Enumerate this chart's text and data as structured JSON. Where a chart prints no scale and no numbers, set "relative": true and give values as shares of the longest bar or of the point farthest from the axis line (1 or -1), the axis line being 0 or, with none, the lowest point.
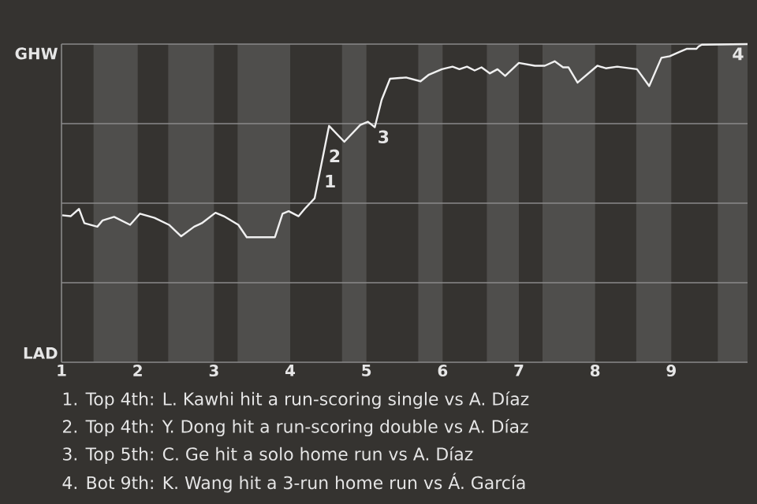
{
  "chart_data": {
    "type": "line",
    "relative": true,
    "x": [
      1.01,
      1.12,
      1.23,
      1.3,
      1.47,
      1.54,
      1.69,
      1.9,
      2.03,
      2.22,
      2.41,
      2.57,
      2.74,
      2.84,
      3.02,
      3.13,
      3.32,
      3.43,
      3.8,
      3.9,
      3.98,
      4.11,
      4.19,
      4.32,
      4.51,
      4.71,
      4.92,
      5.02,
      5.11,
      5.2,
      5.31,
      5.52,
      5.71,
      5.82,
      5.99,
      6.13,
      6.22,
      6.32,
      6.42,
      6.51,
      6.62,
      6.72,
      6.82,
      7.0,
      7.21,
      7.34,
      7.47,
      7.58,
      7.65,
      7.77,
      8.03,
      8.14,
      8.29,
      8.55,
      8.71,
      8.87,
      8.98,
      9.12,
      9.2,
      9.33,
      9.36,
      9.4,
      10
    ],
    "series": [
      {
        "color": "#f0f0f0",
        "values": [
          0.462,
          0.459,
          0.482,
          0.437,
          0.426,
          0.446,
          0.457,
          0.432,
          0.467,
          0.454,
          0.432,
          0.396,
          0.426,
          0.437,
          0.47,
          0.459,
          0.432,
          0.393,
          0.393,
          0.467,
          0.475,
          0.459,
          0.482,
          0.515,
          0.743,
          0.693,
          0.746,
          0.756,
          0.739,
          0.825,
          0.891,
          0.895,
          0.883,
          0.904,
          0.921,
          0.929,
          0.921,
          0.929,
          0.917,
          0.927,
          0.908,
          0.921,
          0.9,
          0.941,
          0.932,
          0.932,
          0.946,
          0.927,
          0.927,
          0.879,
          0.932,
          0.924,
          0.929,
          0.921,
          0.868,
          0.957,
          0.962,
          0.977,
          0.985,
          0.985,
          0.993,
          0.998,
          1
        ]
      }
    ],
    "xlim": [
      1,
      10
    ],
    "xticks": [
      1,
      2,
      3,
      4,
      5,
      6,
      7,
      8,
      9
    ],
    "ref_lines": [
      {
        "axis": "y",
        "value": 0.25,
        "color": "#8a8a8a"
      },
      {
        "axis": "y",
        "value": 0.5,
        "color": "#8a8a8a"
      },
      {
        "axis": "y",
        "value": 0.75,
        "color": "#8a8a8a"
      },
      {
        "axis": "y",
        "value": 1,
        "color": "#8a8a8a"
      }
    ],
    "bands": [
      {
        "axis": "x",
        "from": 1.42,
        "to": 2,
        "color": "#4f4e4c"
      },
      {
        "axis": "x",
        "from": 2.4,
        "to": 3,
        "color": "#4f4e4c"
      },
      {
        "axis": "x",
        "from": 3.31,
        "to": 4,
        "color": "#4f4e4c"
      },
      {
        "axis": "x",
        "from": 4.68,
        "to": 5,
        "color": "#4f4e4c"
      },
      {
        "axis": "x",
        "from": 5.68,
        "to": 6,
        "color": "#4f4e4c"
      },
      {
        "axis": "x",
        "from": 6.58,
        "to": 7,
        "color": "#4f4e4c"
      },
      {
        "axis": "x",
        "from": 7.31,
        "to": 8,
        "color": "#4f4e4c"
      },
      {
        "axis": "x",
        "from": 8.54,
        "to": 9,
        "color": "#4f4e4c"
      },
      {
        "axis": "x",
        "from": 9.61,
        "to": 10,
        "color": "#4f4e4c"
      }
    ],
    "annotations": [
      "GHW",
      "LAD",
      {
        "text": "1",
        "x": 4.4,
        "y": 0.6
      },
      {
        "text": "2",
        "x": 4.46,
        "y": 0.68
      },
      {
        "text": "3",
        "x": 5.1,
        "y": 0.74
      },
      {
        "text": "4",
        "x": 10,
        "y": 1
      },
      "1. Top 4th: L. Kawhi hit a run-scoring single vs A. Díaz",
      "2. Top 4th: Y. Dong hit a run-scoring double vs A. Díaz",
      "3. Top 5th: C. Ge hit a solo home run vs A. Díaz",
      "4. Bot 9th: K. Wang hit a 3-run home run vs Á. García"
    ]
  }
}
